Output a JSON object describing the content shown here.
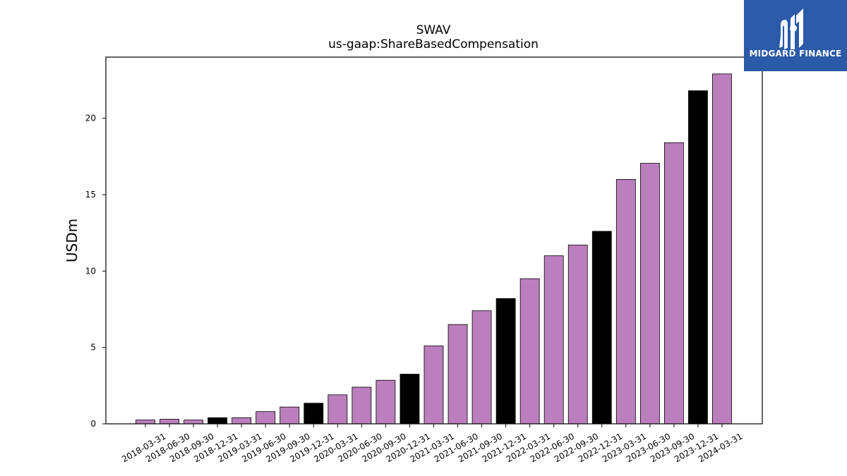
{
  "logo": {
    "text": "MIDGARD FINANCE"
  },
  "colors": {
    "bar_quarter": "#bb7fbd",
    "bar_year_end": "#000000",
    "logo_bg": "#2a5aa8"
  },
  "chart_data": {
    "type": "bar",
    "title": "SWAV",
    "subtitle": "us-gaap:ShareBasedCompensation",
    "xlabel": "",
    "ylabel": "USDm",
    "ylim": [
      0,
      24
    ],
    "yticks": [
      0,
      5,
      10,
      15,
      20
    ],
    "grid": false,
    "categories": [
      "2018-03-31",
      "2018-06-30",
      "2018-09-30",
      "2018-12-31",
      "2019-03-31",
      "2019-06-30",
      "2019-09-30",
      "2019-12-31",
      "2020-03-31",
      "2020-06-30",
      "2020-09-30",
      "2020-12-31",
      "2021-03-31",
      "2021-06-30",
      "2021-09-30",
      "2021-12-31",
      "2022-03-31",
      "2022-06-30",
      "2022-09-30",
      "2022-12-31",
      "2023-03-31",
      "2023-06-30",
      "2023-09-30",
      "2023-12-31",
      "2024-03-31"
    ],
    "values": [
      0.25,
      0.3,
      0.25,
      0.4,
      0.4,
      0.8,
      1.1,
      1.35,
      1.9,
      2.4,
      2.85,
      3.25,
      5.1,
      6.5,
      7.4,
      8.2,
      9.5,
      11.0,
      11.7,
      12.6,
      16.0,
      17.05,
      18.4,
      21.8,
      22.9
    ],
    "year_end": [
      false,
      false,
      false,
      true,
      false,
      false,
      false,
      true,
      false,
      false,
      false,
      true,
      false,
      false,
      false,
      true,
      false,
      false,
      false,
      true,
      false,
      false,
      false,
      true,
      false
    ]
  }
}
